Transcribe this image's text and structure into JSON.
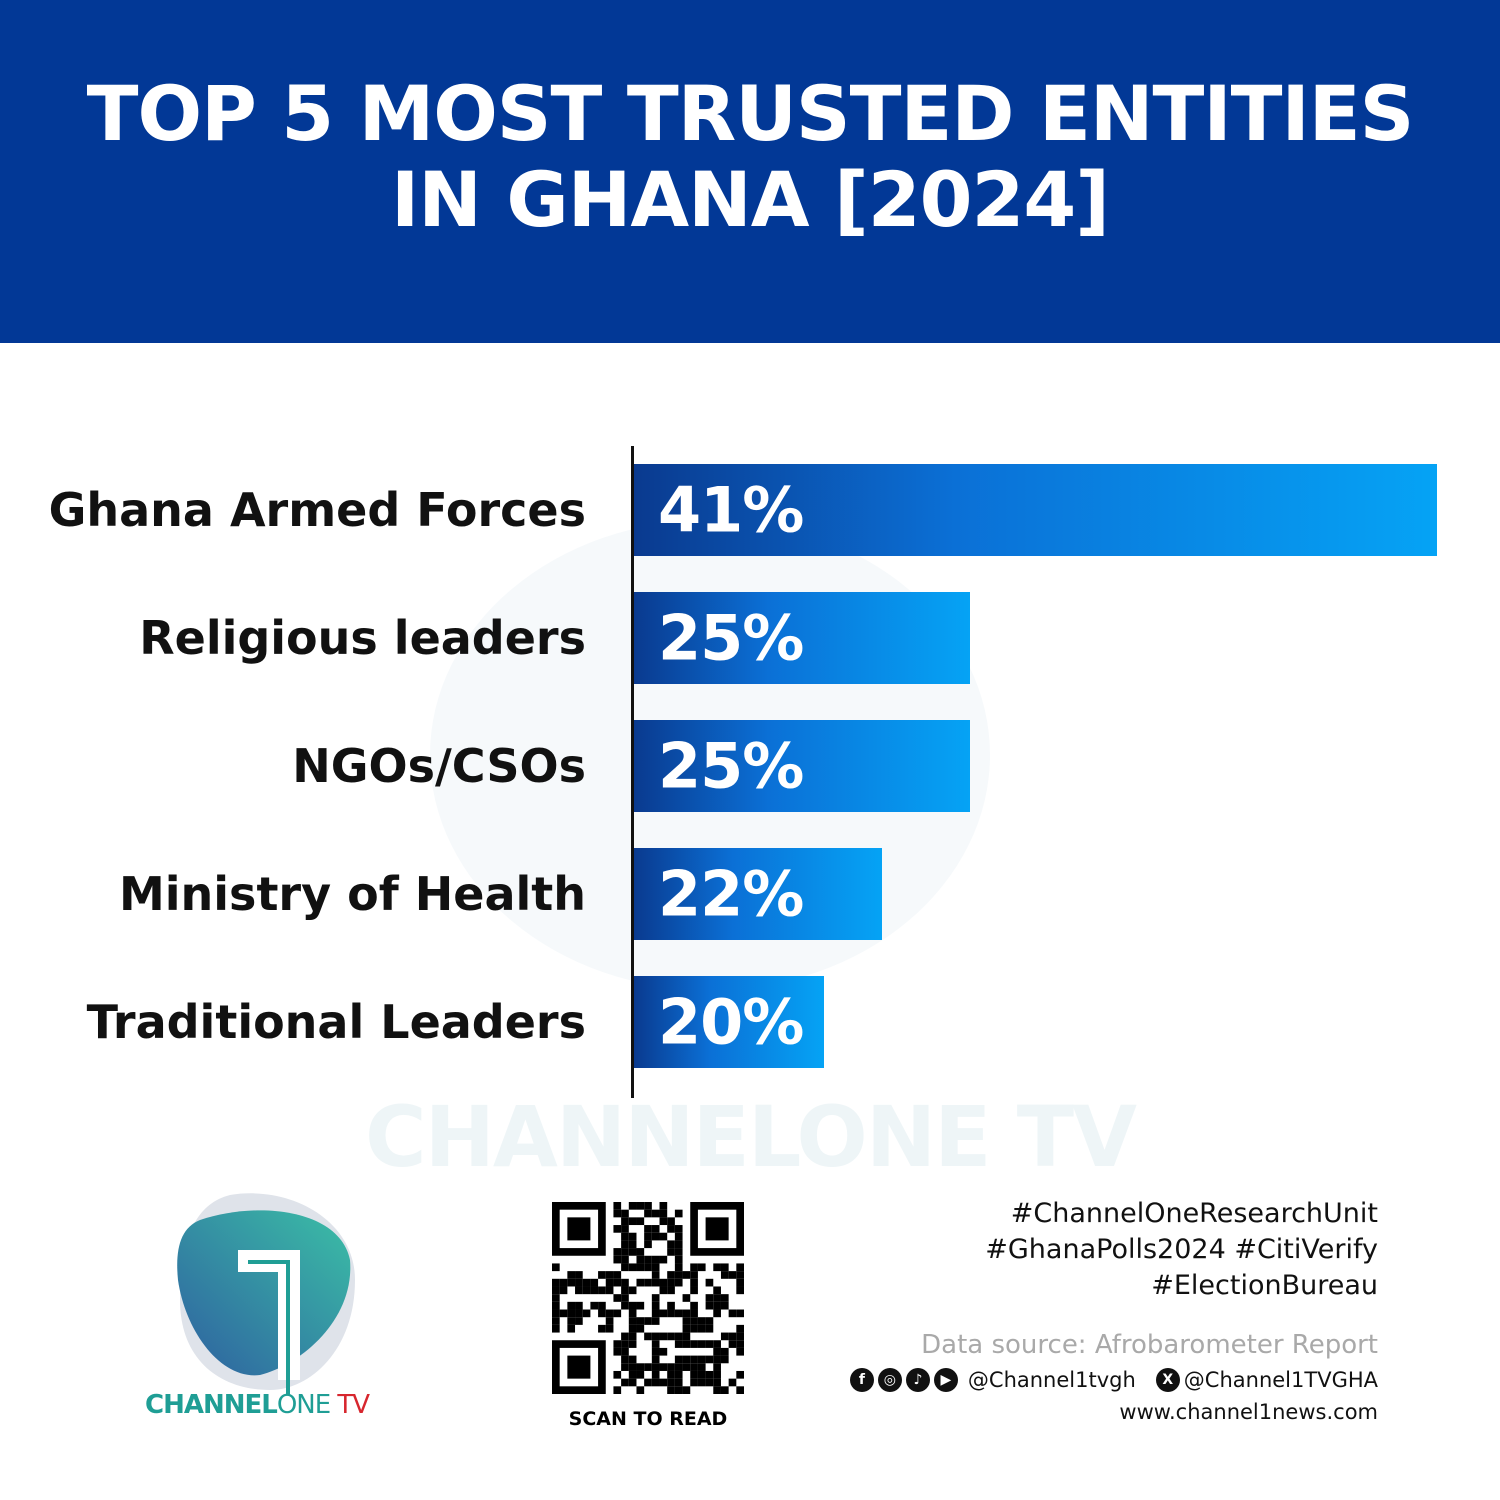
{
  "title_line1": "TOP 5 MOST TRUSTED ENTITIES",
  "title_line2": "IN GHANA [2024]",
  "chart_data": {
    "type": "bar",
    "orientation": "horizontal",
    "title": "TOP 5 MOST TRUSTED ENTITIES IN GHANA [2024]",
    "categories": [
      "Ghana Armed Forces",
      "Religious leaders",
      "NGOs/CSOs",
      "Ministry of Health",
      "Traditional Leaders"
    ],
    "values": [
      41,
      25,
      25,
      22,
      20
    ],
    "data_labels": [
      "41%",
      "25%",
      "25%",
      "22%",
      "20%"
    ],
    "unit": "%",
    "grid": false,
    "colors": {
      "bar_start": "#0a3a8f",
      "bar_end": "#05a3f5",
      "header": "#023896"
    }
  },
  "watermark": "CHANNELONE TV",
  "brand": {
    "part1": "CHANNEL",
    "part2": "ONE",
    "part3": " TV",
    "teal": "#1f9e95",
    "red": "#d7262e"
  },
  "qr": {
    "caption": "SCAN TO READ"
  },
  "hashtags": [
    "#ChannelOneResearchUnit",
    "#GhanaPolls2024 #CitiVerify",
    "#ElectionBureau"
  ],
  "source": "Data source: Afrobarometer Report",
  "social": {
    "icons": [
      "facebook-icon",
      "instagram-icon",
      "tiktok-icon",
      "youtube-icon"
    ],
    "handle1": "@Channel1tvgh",
    "handle2": "@Channel1TVGHA"
  },
  "website": "www.channel1news.com"
}
